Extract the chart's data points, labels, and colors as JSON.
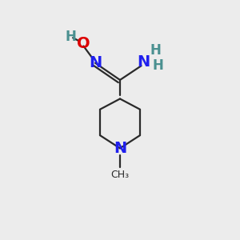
{
  "bg_color": "#ececec",
  "bond_color": "#2a2a2a",
  "N_color": "#2020ee",
  "O_color": "#dd0000",
  "H_color": "#4a9090",
  "bond_width": 1.6,
  "figsize": [
    3.0,
    3.0
  ],
  "dpi": 100,
  "xlim": [
    0,
    10
  ],
  "ylim": [
    0,
    10
  ]
}
